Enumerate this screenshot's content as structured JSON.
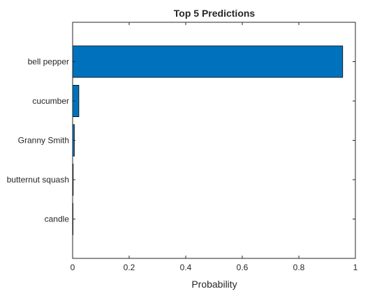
{
  "chart_data": {
    "type": "bar",
    "orientation": "horizontal",
    "title": "Top 5 Predictions",
    "xlabel": "Probability",
    "ylabel": "",
    "categories": [
      "bell pepper",
      "cucumber",
      "Granny Smith",
      "butternut squash",
      "candle"
    ],
    "values": [
      0.955,
      0.022,
      0.006,
      0.002,
      0.001
    ],
    "xlim": [
      0,
      1
    ],
    "xticks": [
      0,
      0.2,
      0.4,
      0.6,
      0.8,
      1
    ],
    "xtick_labels": [
      "0",
      "0.2",
      "0.4",
      "0.6",
      "0.8",
      "1"
    ],
    "bar_color": "#0072BD",
    "edge_color": "#000000",
    "grid": false,
    "legend": "none"
  }
}
